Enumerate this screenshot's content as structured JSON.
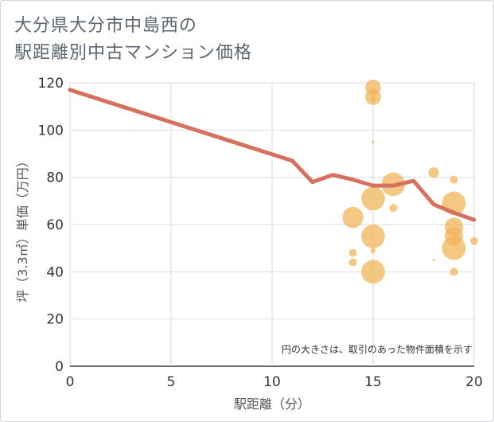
{
  "title_lines": [
    "大分県大分市中島西の",
    "駅距離別中古マンション価格"
  ],
  "chart_data": {
    "type": "scatter",
    "xlabel": "駅距離（分）",
    "ylabel": "坪（3.3㎡）単価（万円）",
    "xlim": [
      0,
      20
    ],
    "ylim": [
      0,
      120
    ],
    "xticks": [
      0,
      5,
      10,
      15,
      20
    ],
    "yticks": [
      0,
      20,
      40,
      60,
      80,
      100,
      120
    ],
    "grid": true,
    "note": "円の大きさは、取引のあった物件面積を示す",
    "colors": {
      "bubble": "#f0b45a",
      "line": "#d7715f",
      "grid": "#d6dde3"
    },
    "bubbles": [
      {
        "x": 15,
        "y": 118,
        "size": 3
      },
      {
        "x": 15,
        "y": 114,
        "size": 3
      },
      {
        "x": 15,
        "y": 113,
        "size": 1
      },
      {
        "x": 15,
        "y": 95,
        "size": 0.5
      },
      {
        "x": 14,
        "y": 63,
        "size": 4
      },
      {
        "x": 14,
        "y": 48,
        "size": 1.5
      },
      {
        "x": 14,
        "y": 44,
        "size": 1.5
      },
      {
        "x": 15,
        "y": 71,
        "size": 4.5
      },
      {
        "x": 15,
        "y": 55,
        "size": 4.5
      },
      {
        "x": 15,
        "y": 49,
        "size": 1
      },
      {
        "x": 15,
        "y": 40,
        "size": 4.5
      },
      {
        "x": 16,
        "y": 77,
        "size": 4.5
      },
      {
        "x": 16,
        "y": 67,
        "size": 1.5
      },
      {
        "x": 18,
        "y": 82,
        "size": 2
      },
      {
        "x": 18,
        "y": 45,
        "size": 0.5
      },
      {
        "x": 19,
        "y": 79,
        "size": 1.5
      },
      {
        "x": 19,
        "y": 69,
        "size": 4.5
      },
      {
        "x": 19,
        "y": 59,
        "size": 3.5
      },
      {
        "x": 19,
        "y": 55,
        "size": 3.5
      },
      {
        "x": 19,
        "y": 50,
        "size": 4.5
      },
      {
        "x": 19,
        "y": 40,
        "size": 1.5
      },
      {
        "x": 20,
        "y": 53,
        "size": 1.5
      }
    ],
    "trend": [
      {
        "x": 0,
        "y": 117
      },
      {
        "x": 11,
        "y": 87
      },
      {
        "x": 12,
        "y": 78
      },
      {
        "x": 13,
        "y": 81
      },
      {
        "x": 14,
        "y": 79
      },
      {
        "x": 15,
        "y": 76.5
      },
      {
        "x": 16,
        "y": 76.5
      },
      {
        "x": 17,
        "y": 78.5
      },
      {
        "x": 18,
        "y": 68.5
      },
      {
        "x": 19,
        "y": 65
      },
      {
        "x": 20,
        "y": 62
      }
    ]
  }
}
